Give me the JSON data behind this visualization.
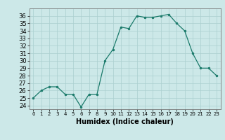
{
  "x": [
    0,
    1,
    2,
    3,
    4,
    5,
    6,
    7,
    8,
    9,
    10,
    11,
    12,
    13,
    14,
    15,
    16,
    17,
    18,
    19,
    20,
    21,
    22,
    23
  ],
  "y": [
    25.0,
    26.0,
    26.5,
    26.5,
    25.5,
    25.5,
    23.8,
    25.5,
    25.5,
    30.0,
    31.5,
    34.5,
    34.3,
    36.0,
    35.8,
    35.8,
    36.0,
    36.2,
    35.0,
    34.0,
    31.0,
    29.0,
    29.0,
    28.0
  ],
  "line_color": "#1a7a6a",
  "marker_color": "#1a7a6a",
  "bg_color": "#cce8e8",
  "grid_color": "#aacfcf",
  "xlabel": "Humidex (Indice chaleur)",
  "xlim": [
    -0.5,
    23.5
  ],
  "ylim": [
    23.5,
    37.0
  ],
  "yticks": [
    24,
    25,
    26,
    27,
    28,
    29,
    30,
    31,
    32,
    33,
    34,
    35,
    36
  ],
  "xticks": [
    0,
    1,
    2,
    3,
    4,
    5,
    6,
    7,
    8,
    9,
    10,
    11,
    12,
    13,
    14,
    15,
    16,
    17,
    18,
    19,
    20,
    21,
    22,
    23
  ],
  "xlabel_fontsize": 7,
  "tick_fontsize": 6
}
